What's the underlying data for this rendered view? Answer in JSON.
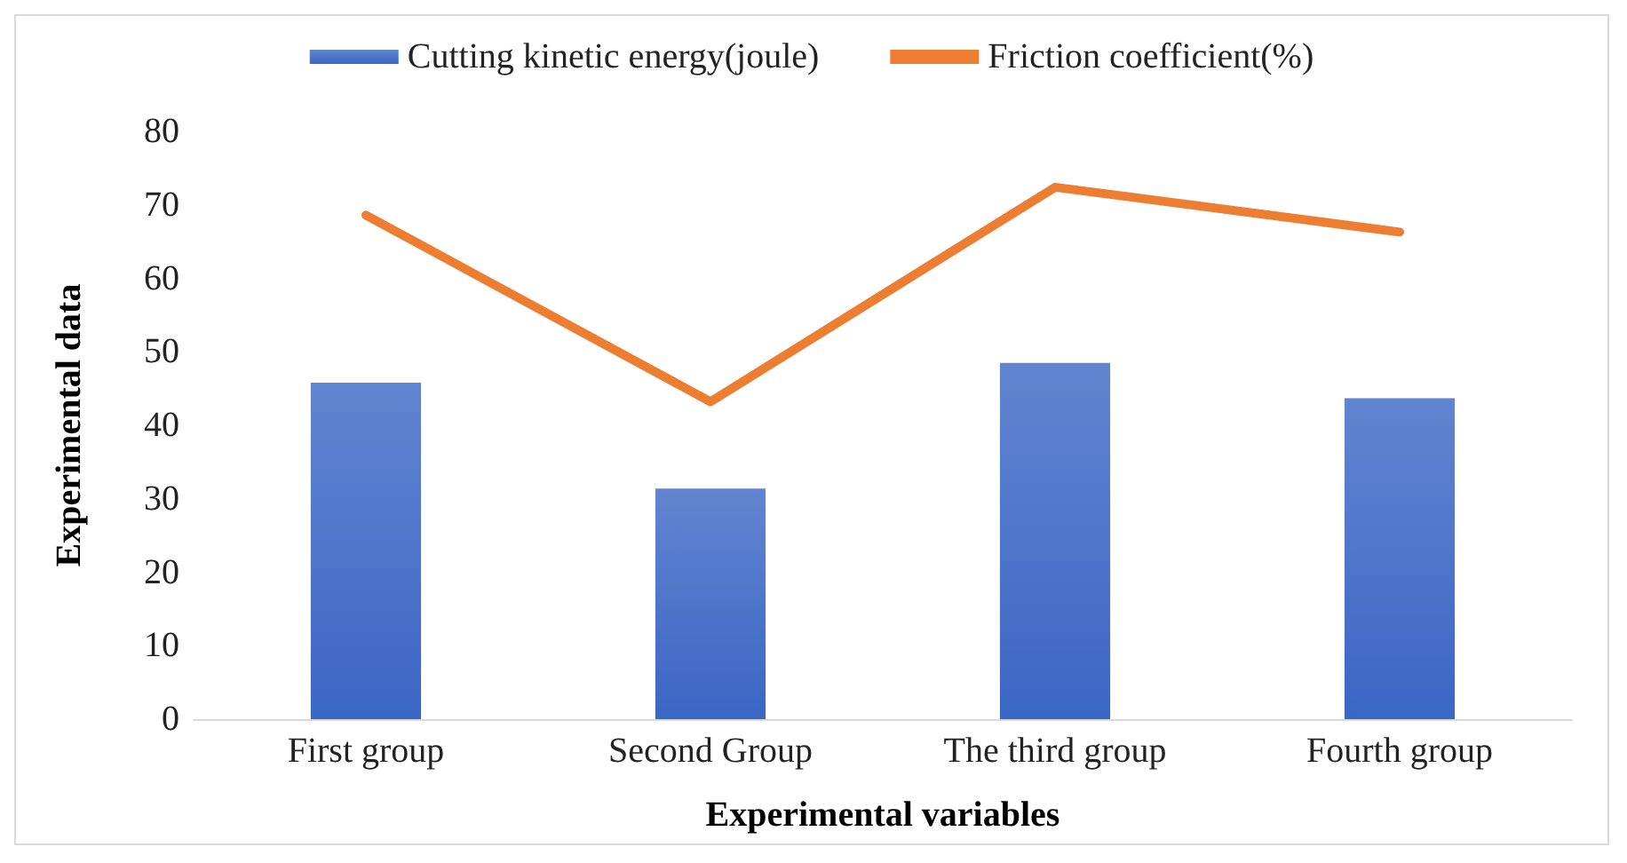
{
  "chart_data": {
    "type": "bar",
    "categories": [
      "First group",
      "Second Group",
      "The third group",
      "Fourth group"
    ],
    "series": [
      {
        "name": "Cutting kinetic energy(joule)",
        "color": "#3a66c4",
        "values": [
          45.8,
          31.4,
          48.5,
          43.7
        ]
      },
      {
        "name": "Friction coefficient(%)",
        "type": "line",
        "color": "#ed7d31",
        "values": [
          68.6,
          43.2,
          72.4,
          66.3
        ]
      }
    ],
    "xlabel": "Experimental variables",
    "ylabel": "Experimental data",
    "ylim": [
      0,
      80
    ],
    "yticks": [
      0,
      10,
      20,
      30,
      40,
      50,
      60,
      70,
      80
    ],
    "grid": false,
    "legend": "top",
    "marker": "none",
    "line_style": "solid"
  }
}
